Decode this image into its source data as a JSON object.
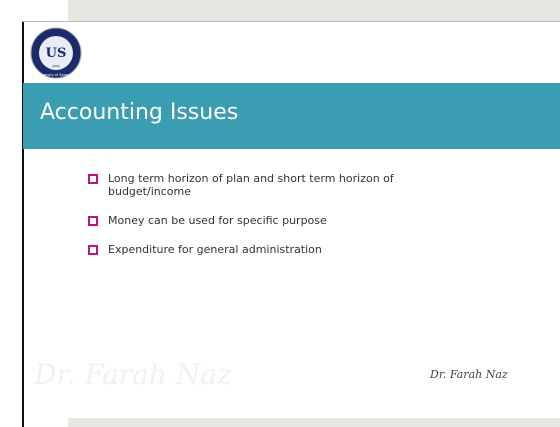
{
  "slide": {
    "logo": {
      "initials": "US",
      "name": "University of Sargodha",
      "year": "2002"
    },
    "title": "Accounting Issues",
    "bullets": [
      "Long term horizon of plan and short term horizon of budget/income",
      "Money can be used for specific purpose",
      "Expenditure for general administration"
    ],
    "watermark": "Dr. Farah Naz",
    "author": "Dr. Farah Naz"
  }
}
